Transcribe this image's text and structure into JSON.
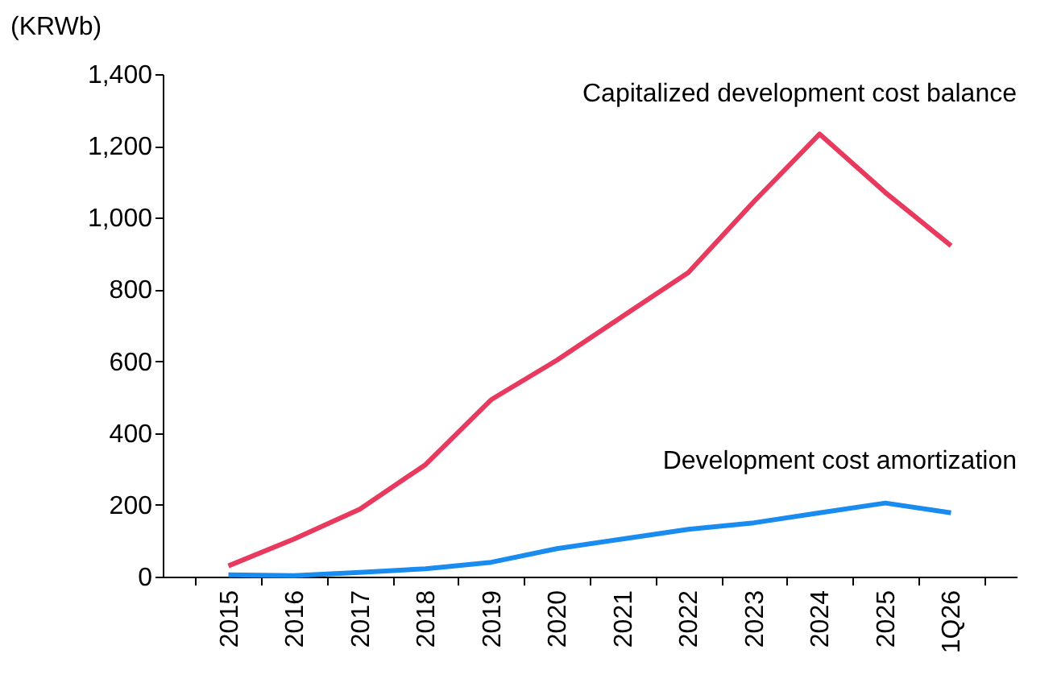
{
  "chart_data": {
    "type": "line",
    "ylabel": "(KRWb)",
    "categories": [
      "2015",
      "2016",
      "2017",
      "2018",
      "2019",
      "2020",
      "2021",
      "2022",
      "2023",
      "2024",
      "2025",
      "1Q26"
    ],
    "series": [
      {
        "name": "Capitalized development cost balance",
        "color": "#e8395e",
        "values": [
          30,
          105,
          188,
          312,
          493,
          603,
          725,
          847,
          1045,
          1233,
          1070,
          922
        ]
      },
      {
        "name": "Development cost amortization",
        "color": "#1a8cf0",
        "values": [
          5,
          3,
          12,
          22,
          40,
          78,
          105,
          132,
          150,
          178,
          205,
          178
        ]
      }
    ],
    "ylim": [
      0,
      1400
    ],
    "yticks": [
      0,
      200,
      400,
      600,
      800,
      {
        "value": 1000,
        "label": "1,000"
      },
      {
        "value": 1200,
        "label": "1,200"
      },
      {
        "value": 1400,
        "label": "1,400"
      }
    ],
    "grid": false,
    "legend": false
  }
}
